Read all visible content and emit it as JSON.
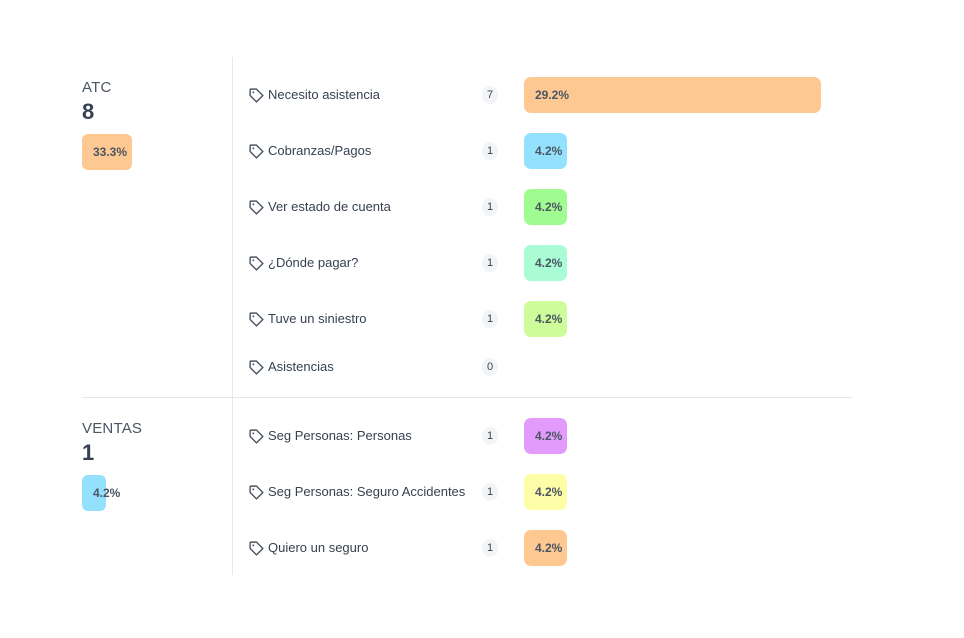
{
  "groups": [
    {
      "name": "ATC",
      "count": "8",
      "percent_label": "33.3%",
      "percent": 33.3,
      "color": "#fdc891",
      "items": [
        {
          "label": "Necesito asistencia",
          "count": "7",
          "percent_label": "29.2%",
          "percent": 29.2,
          "color": "#fdc891",
          "icon": "tag-icon"
        },
        {
          "label": "Cobranzas/Pagos",
          "count": "1",
          "percent_label": "4.2%",
          "percent": 4.2,
          "color": "#93e1fd",
          "icon": "tag-icon"
        },
        {
          "label": "Ver estado de cuenta",
          "count": "1",
          "percent_label": "4.2%",
          "percent": 4.2,
          "color": "#a0fc91",
          "icon": "tag-icon"
        },
        {
          "label": "¿Dónde pagar?",
          "count": "1",
          "percent_label": "4.2%",
          "percent": 4.2,
          "color": "#a9fcd4",
          "icon": "tag-icon"
        },
        {
          "label": "Tuve un siniestro",
          "count": "1",
          "percent_label": "4.2%",
          "percent": 4.2,
          "color": "#cffc9a",
          "icon": "tag-icon"
        },
        {
          "label": "Asistencias",
          "count": "0",
          "percent_label": "",
          "percent": 0,
          "color": "",
          "icon": "tag-icon"
        }
      ]
    },
    {
      "name": "VENTAS",
      "count": "1",
      "percent_label": "4.2%",
      "percent": 4.2,
      "color": "#93e1fd",
      "items": [
        {
          "label": "Seg Personas: Personas",
          "count": "1",
          "percent_label": "4.2%",
          "percent": 4.2,
          "color": "#e29bfa",
          "icon": "tag-icon"
        },
        {
          "label": "Seg Personas: Seguro Accidentes",
          "count": "1",
          "percent_label": "4.2%",
          "percent": 4.2,
          "color": "#fdfda8",
          "icon": "tag-icon"
        },
        {
          "label": "Quiero un seguro",
          "count": "1",
          "percent_label": "4.2%",
          "percent": 4.2,
          "color": "#fdc891",
          "icon": "tag-icon"
        }
      ]
    }
  ]
}
